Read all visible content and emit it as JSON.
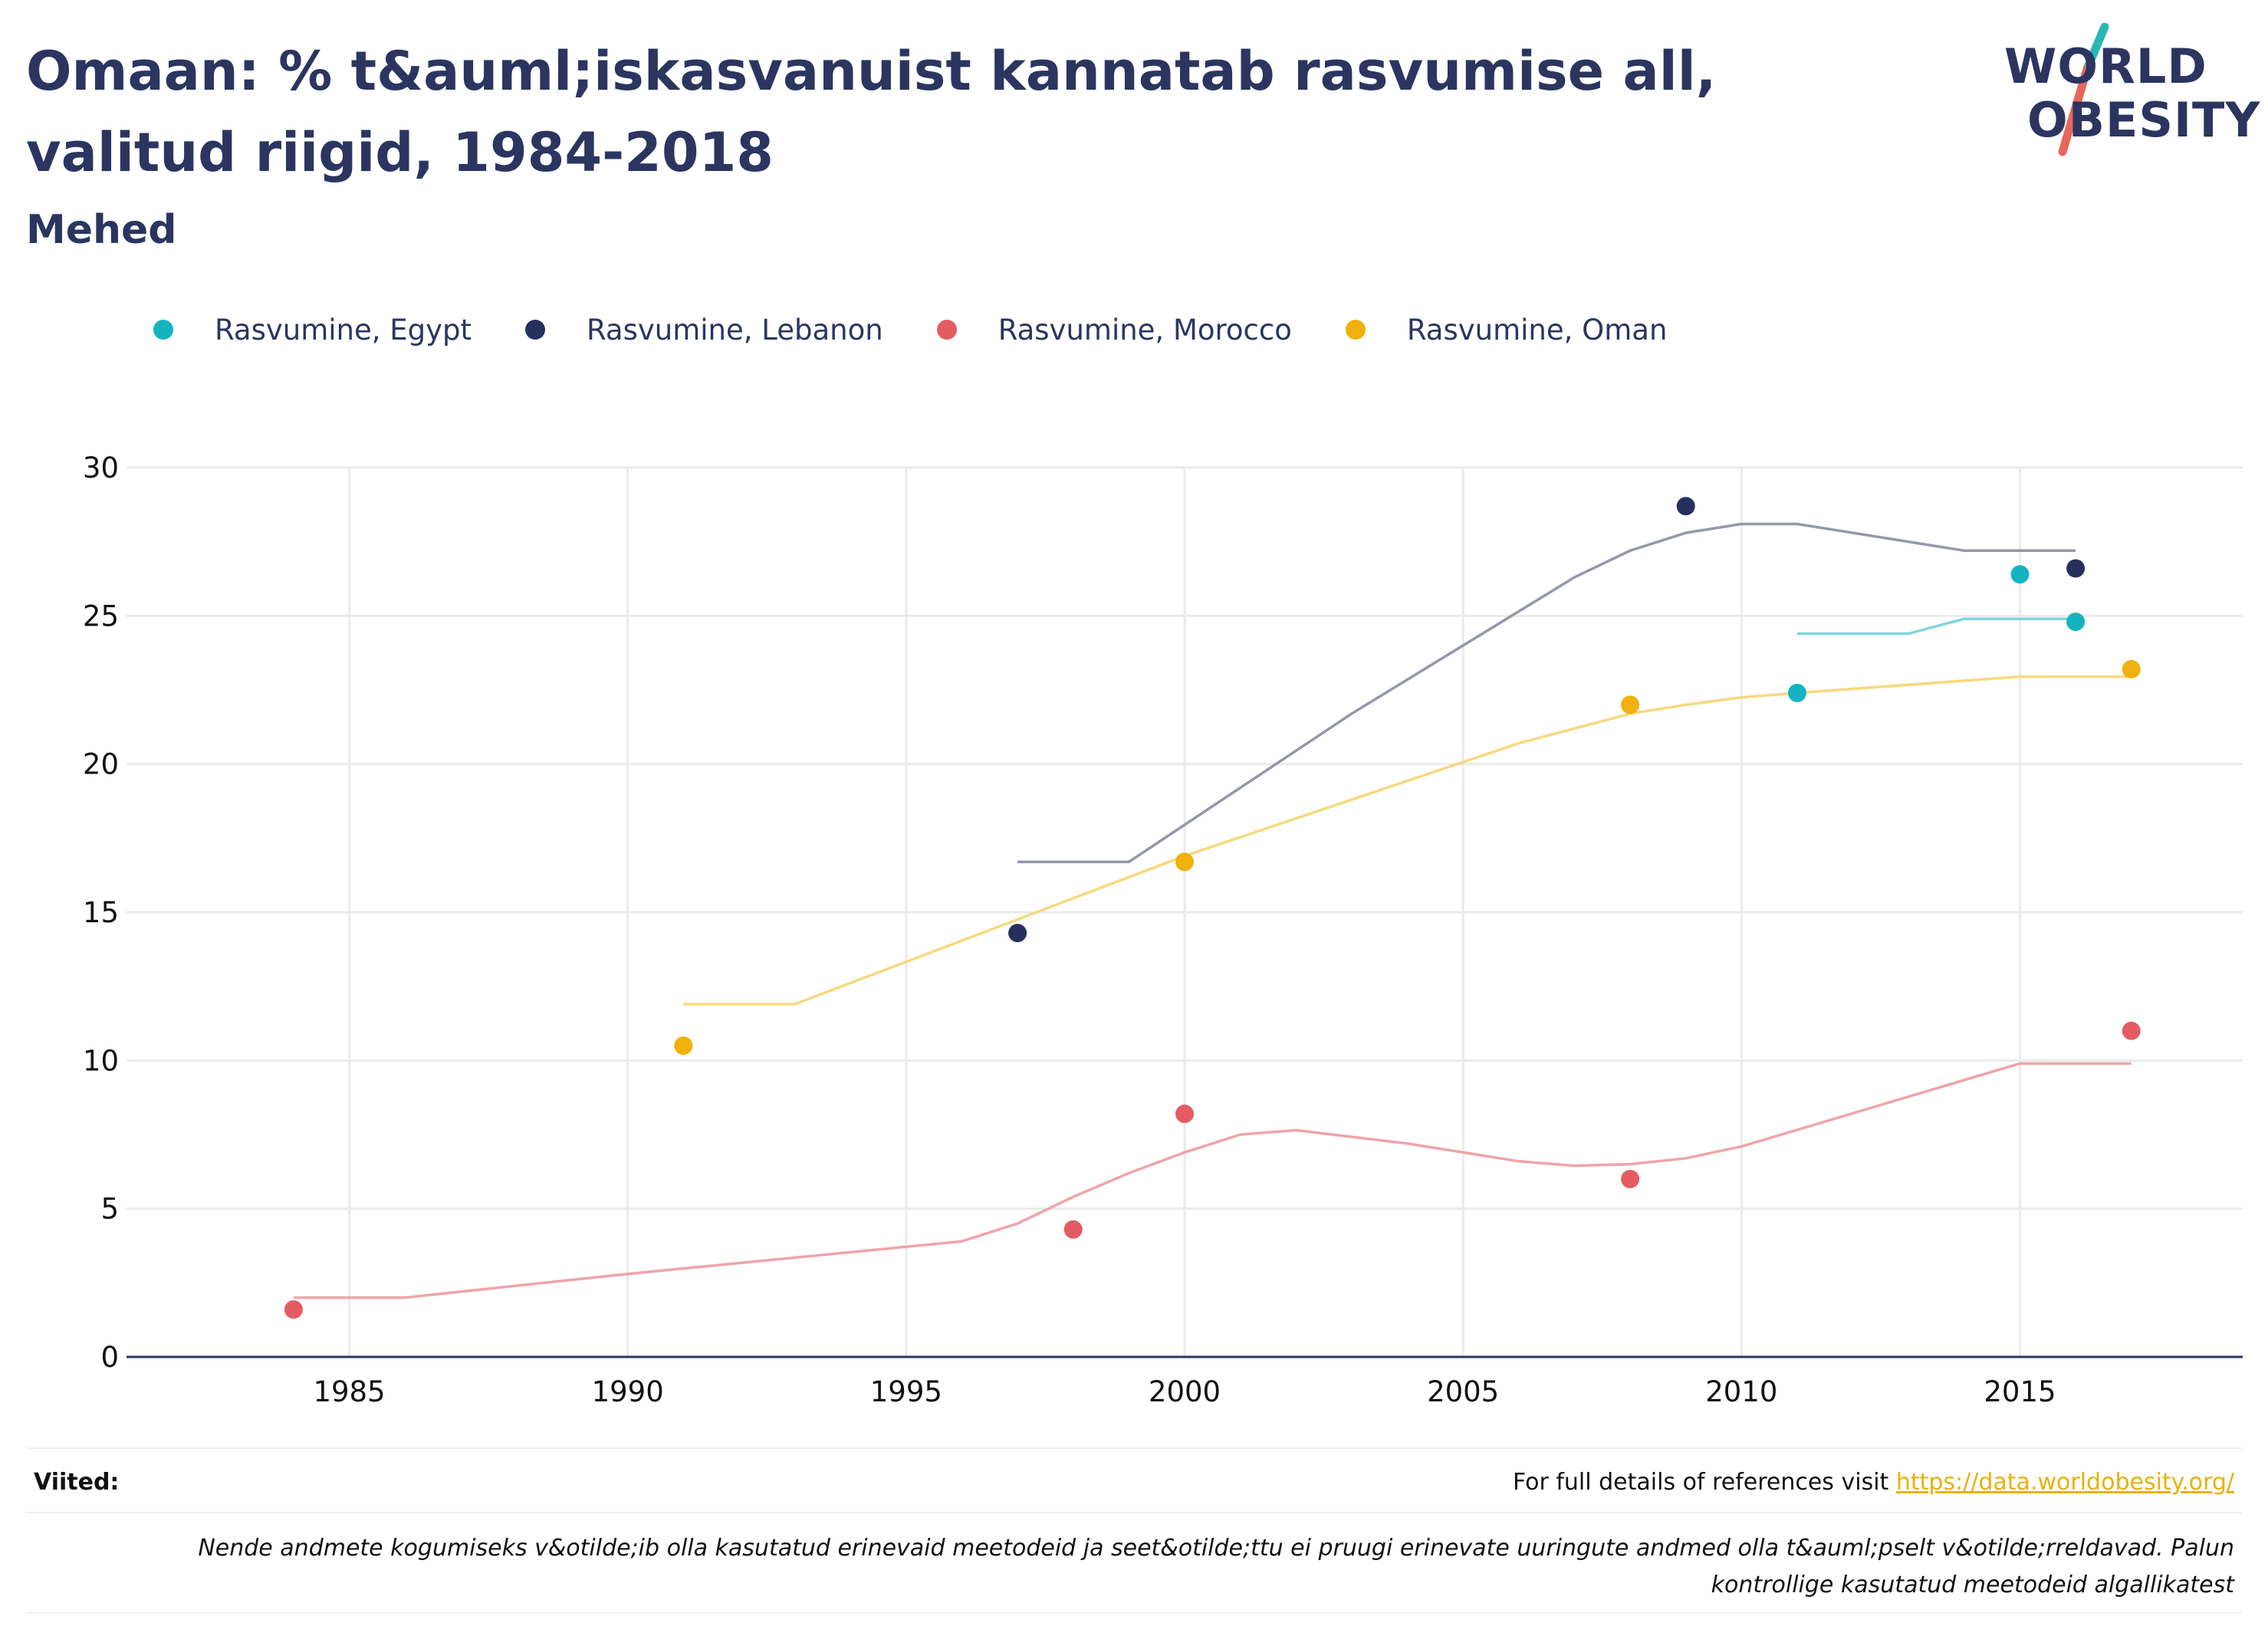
{
  "header": {
    "title": "Omaan: % t&auml;iskasvanuist kannatab rasvumise all, valitud riigid, 1984-2018",
    "subtitle": "Mehed"
  },
  "logo": {
    "line1": "WORLD",
    "line2": "OBESITY",
    "accent_teal": "#2bb6b4",
    "accent_red": "#e8675a"
  },
  "legend": [
    {
      "label": "Rasvumine, Egypt",
      "color": "#15b3c0"
    },
    {
      "label": "Rasvumine, Lebanon",
      "color": "#26305e"
    },
    {
      "label": "Rasvumine, Morocco",
      "color": "#e35c63"
    },
    {
      "label": "Rasvumine, Oman",
      "color": "#f1b10c"
    }
  ],
  "chart_data": {
    "type": "scatter",
    "x_ticks": [
      "1985",
      "1990",
      "1995",
      "2000",
      "2005",
      "2010",
      "2015"
    ],
    "y_ticks": [
      "0",
      "5",
      "10",
      "15",
      "20",
      "25",
      "30"
    ],
    "xlim": [
      1981,
      2019
    ],
    "ylim": [
      0,
      30
    ],
    "grid": true,
    "legend_position": "top-left",
    "series": [
      {
        "name": "Rasvumine, Egypt",
        "color": "#15b3c0",
        "trend_color": "#7fd6de",
        "points": [
          [
            2011,
            22.4
          ],
          [
            2015,
            26.4
          ],
          [
            2016,
            24.8
          ]
        ],
        "trend": [
          [
            2011,
            24.4
          ],
          [
            2013,
            24.4
          ],
          [
            2014,
            24.9
          ],
          [
            2016,
            24.9
          ]
        ]
      },
      {
        "name": "Rasvumine, Lebanon",
        "color": "#26305e",
        "trend_color": "#9598aa",
        "points": [
          [
            1997,
            14.3
          ],
          [
            2009,
            28.7
          ],
          [
            2016,
            26.6
          ]
        ],
        "trend": [
          [
            1997,
            16.7
          ],
          [
            1999,
            16.7
          ],
          [
            2003,
            21.7
          ],
          [
            2007,
            26.3
          ],
          [
            2008,
            27.2
          ],
          [
            2009,
            27.8
          ],
          [
            2010,
            28.1
          ],
          [
            2011,
            28.1
          ],
          [
            2014,
            27.2
          ],
          [
            2016,
            27.2
          ]
        ]
      },
      {
        "name": "Rasvumine, Morocco",
        "color": "#e35c63",
        "trend_color": "#f0a4a8",
        "points": [
          [
            1984,
            1.6
          ],
          [
            1998,
            4.3
          ],
          [
            2000,
            8.2
          ],
          [
            2008,
            6.0
          ],
          [
            2017,
            11.0
          ]
        ],
        "trend": [
          [
            1984,
            2.0
          ],
          [
            1986,
            2.0
          ],
          [
            1990,
            2.8
          ],
          [
            1996,
            3.9
          ],
          [
            1997,
            4.5
          ],
          [
            1998,
            5.4
          ],
          [
            1999,
            6.2
          ],
          [
            2000,
            6.9
          ],
          [
            2001,
            7.5
          ],
          [
            2002,
            7.65
          ],
          [
            2004,
            7.2
          ],
          [
            2006,
            6.6
          ],
          [
            2007,
            6.45
          ],
          [
            2008,
            6.5
          ],
          [
            2009,
            6.7
          ],
          [
            2010,
            7.1
          ],
          [
            2015,
            9.9
          ],
          [
            2017,
            9.9
          ]
        ]
      },
      {
        "name": "Rasvumine, Oman",
        "color": "#f1b10c",
        "trend_color": "#f7d97e",
        "points": [
          [
            1991,
            10.5
          ],
          [
            2000,
            16.7
          ],
          [
            2008,
            22.0
          ],
          [
            2017,
            23.2
          ]
        ],
        "trend": [
          [
            1991,
            11.9
          ],
          [
            1993,
            11.9
          ],
          [
            2000,
            16.9
          ],
          [
            2006,
            20.7
          ],
          [
            2007,
            21.2
          ],
          [
            2008,
            21.7
          ],
          [
            2009,
            22.0
          ],
          [
            2010,
            22.25
          ],
          [
            2011,
            22.4
          ],
          [
            2015,
            22.95
          ],
          [
            2017,
            22.95
          ]
        ]
      }
    ]
  },
  "footer": {
    "references_label": "Viited:",
    "references_text": "For full details of references visit ",
    "references_link": "https://data.worldobesity.org/",
    "note": "Nende andmete kogumiseks v&otilde;ib olla kasutatud erinevaid meetodeid ja seet&otilde;ttu ei pruugi erinevate uuringute andmed olla t&auml;pselt v&otilde;rreldavad. Palun kontrollige kasutatud meetodeid algallikatest"
  }
}
